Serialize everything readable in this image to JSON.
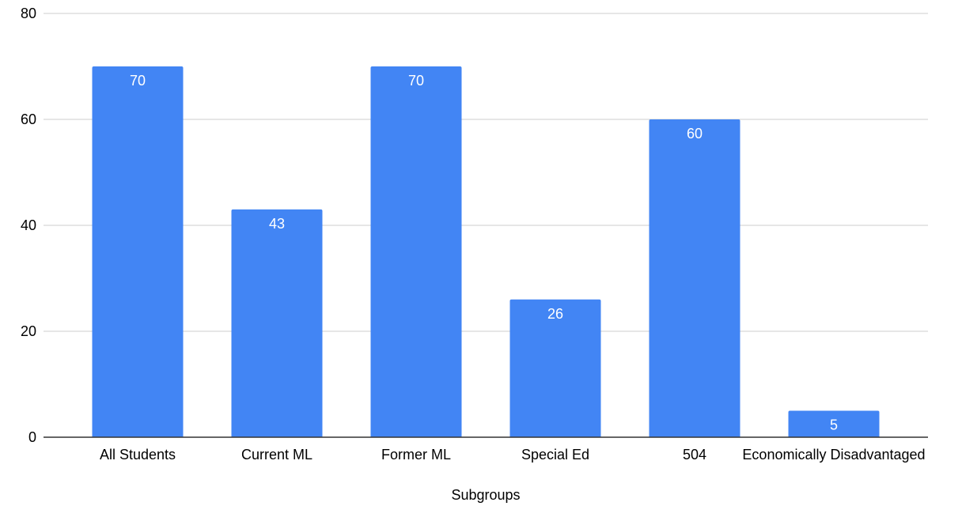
{
  "chart_data": {
    "type": "bar",
    "title": "",
    "xlabel": "Subgroups",
    "ylabel": "",
    "categories": [
      "All Students",
      "Current ML",
      "Former ML",
      "Special Ed",
      "504",
      "Economically Disadvantaged"
    ],
    "values": [
      70,
      43,
      70,
      26,
      60,
      5
    ],
    "ylim": [
      0,
      80
    ],
    "yticks": [
      0,
      20,
      40,
      60,
      80
    ],
    "grid": true,
    "legend": "none",
    "bar_color": "#4285f4",
    "grid_color": "#cccccc",
    "axis_color": "#333333",
    "data_label_color": "#ffffff"
  }
}
